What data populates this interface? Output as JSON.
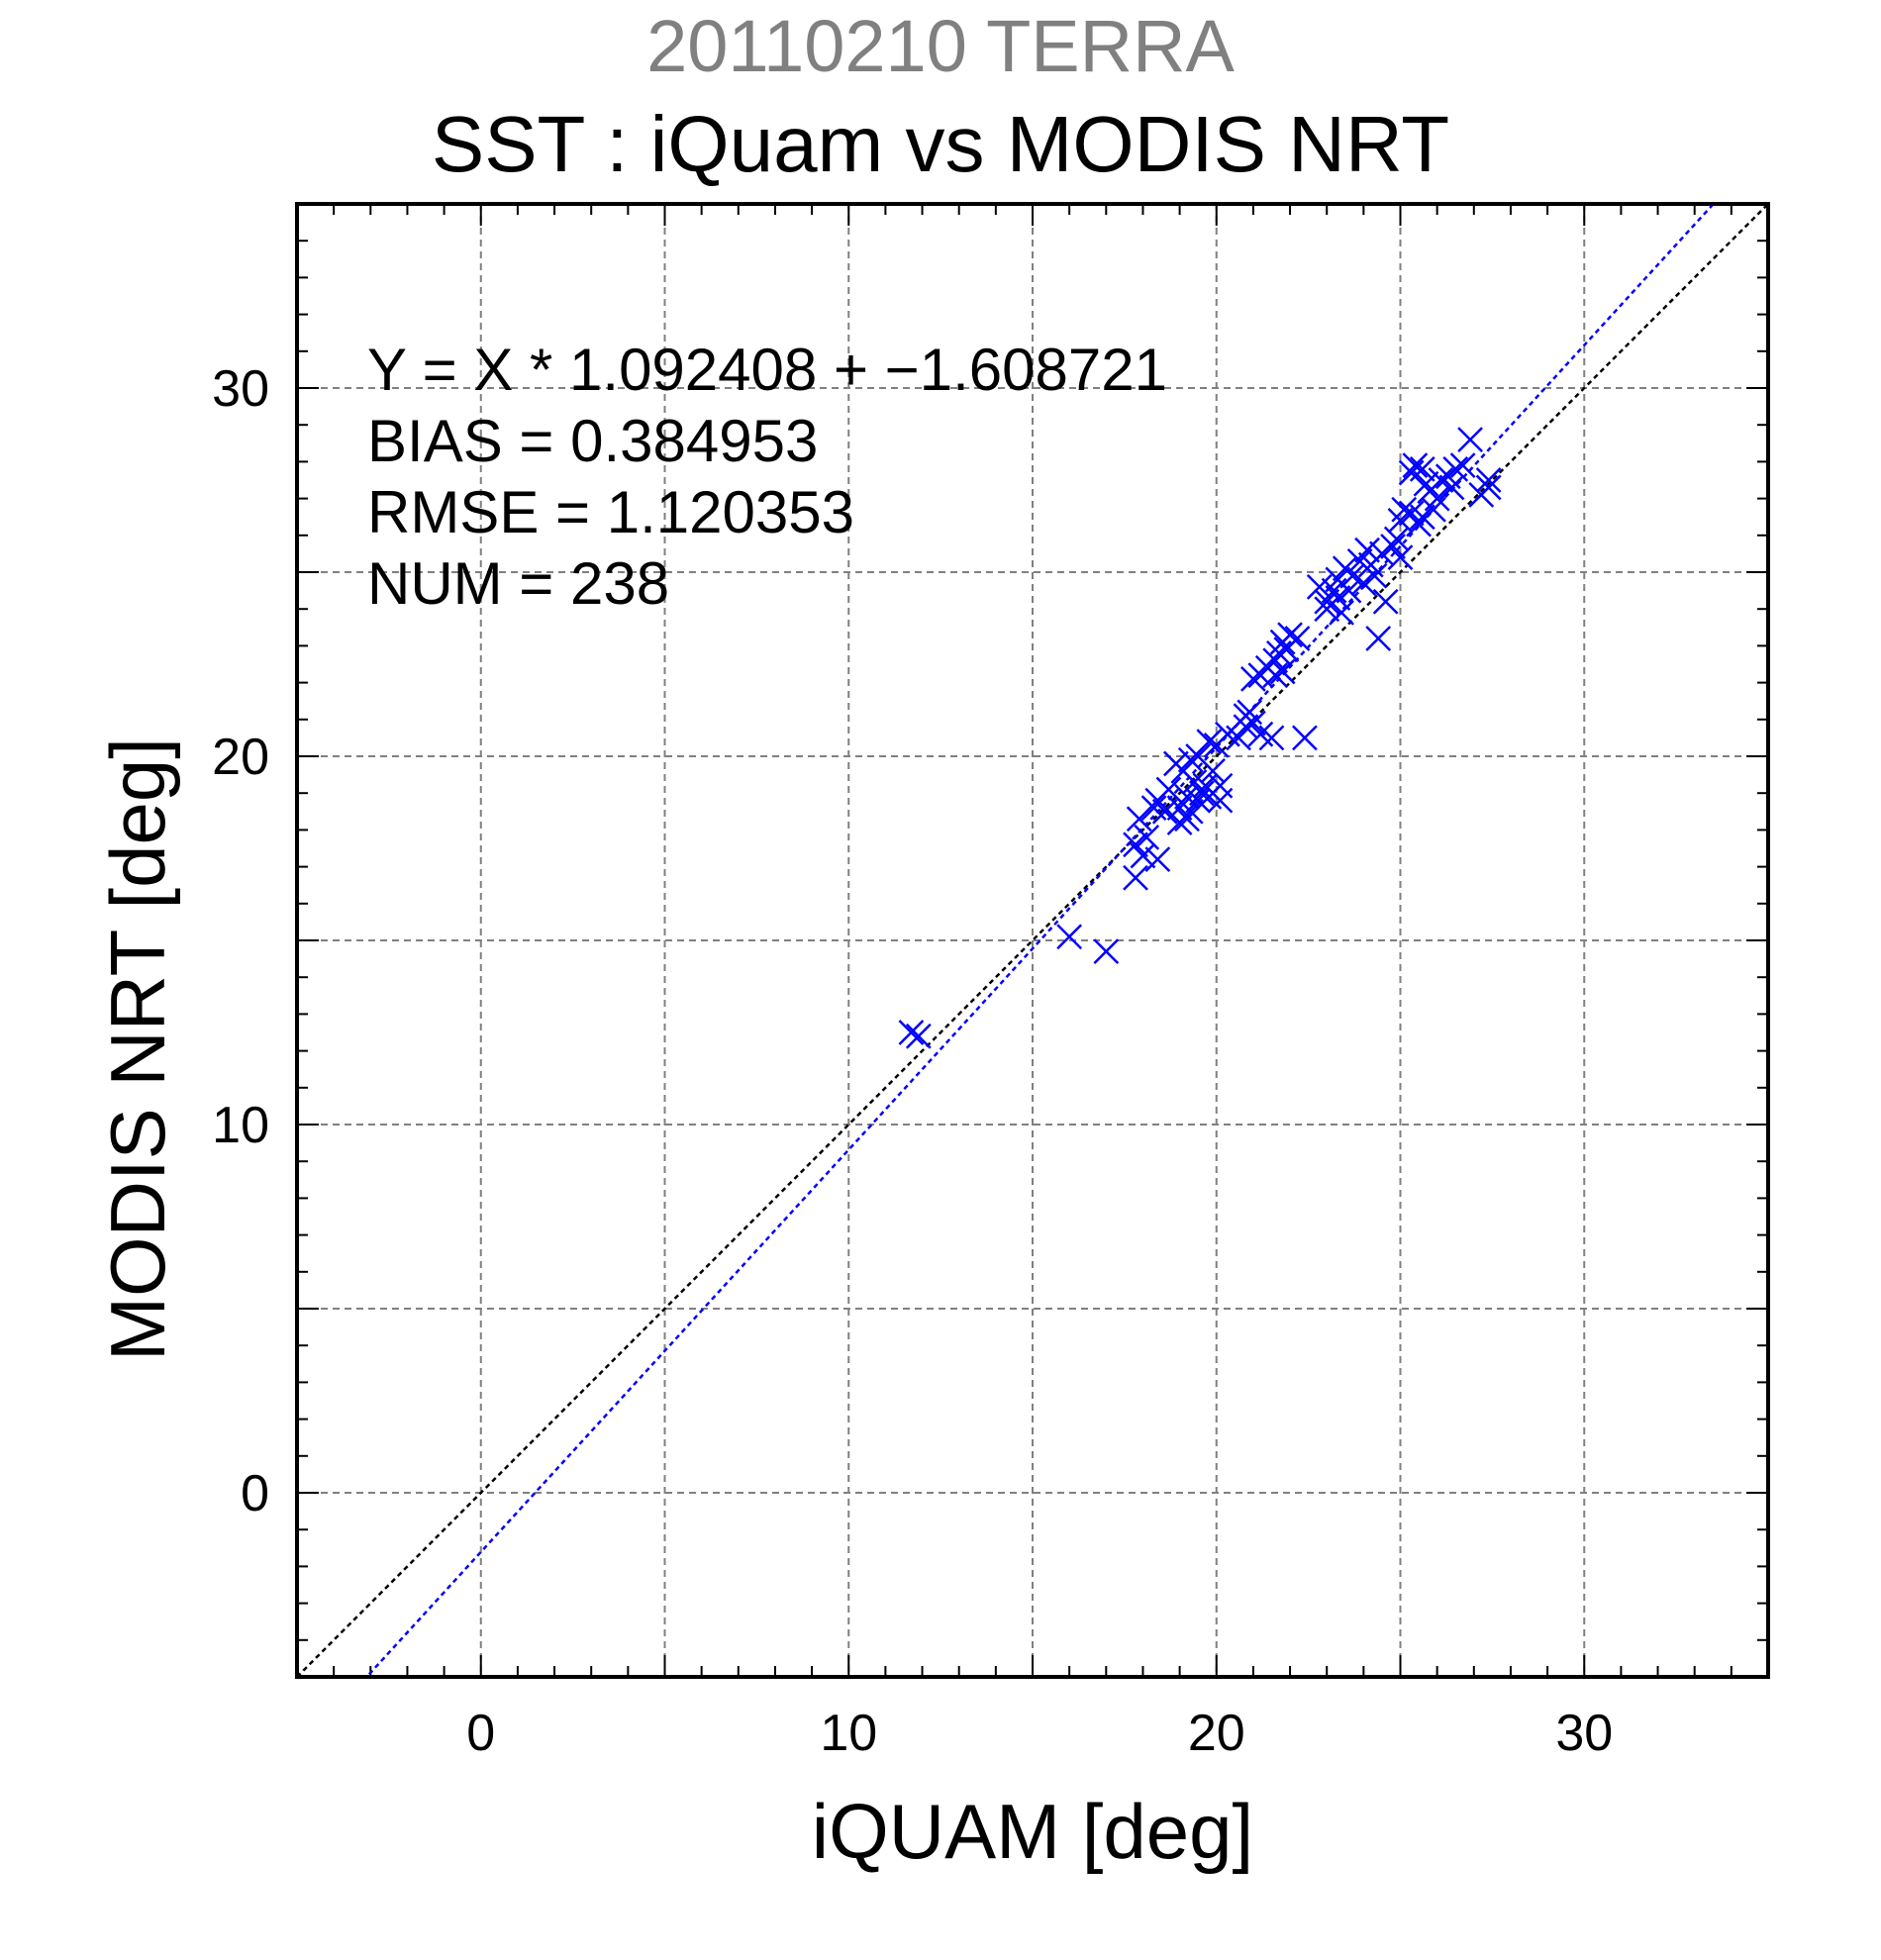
{
  "chart_data": {
    "type": "scatter",
    "title": "20110210 TERRA",
    "subtitle": "SST : iQuam vs MODIS NRT",
    "xlabel": "iQUAM [deg]",
    "ylabel": "MODIS NRT [deg]",
    "xlim": [
      -5,
      35
    ],
    "ylim": [
      -5,
      35
    ],
    "xticks": [
      "0",
      "10",
      "20",
      "30"
    ],
    "yticks": [
      "0",
      "10",
      "20",
      "30"
    ],
    "grid": true,
    "annotations": [
      "Y = X * 1.092408 + −1.608721",
      "BIAS = 0.384953",
      "RMSE = 1.120353",
      "NUM = 238"
    ],
    "fit_line": {
      "slope": 1.092408,
      "intercept": -1.608721,
      "color": "#0000ff"
    },
    "identity_line": {
      "slope": 1,
      "intercept": 0,
      "color": "#000000"
    },
    "marker_color": "#0000ff",
    "x": [
      11.7,
      11.9,
      16.0,
      17.0,
      17.8,
      17.8,
      17.9,
      18.0,
      18.1,
      18.3,
      18.4,
      18.4,
      18.6,
      18.7,
      18.9,
      19.0,
      19.0,
      19.1,
      19.2,
      19.2,
      19.3,
      19.3,
      19.4,
      19.5,
      19.5,
      19.6,
      19.7,
      19.8,
      19.8,
      19.9,
      20.0,
      20.1,
      20.1,
      20.3,
      20.6,
      20.8,
      20.8,
      20.9,
      21.0,
      21.0,
      21.2,
      21.2,
      21.4,
      21.5,
      21.6,
      21.6,
      21.7,
      21.8,
      21.8,
      21.9,
      22.0,
      22.2,
      22.4,
      22.8,
      23.0,
      23.0,
      23.2,
      23.3,
      23.3,
      23.4,
      23.5,
      23.6,
      23.7,
      23.9,
      24.0,
      24.1,
      24.2,
      24.3,
      24.4,
      24.5,
      24.6,
      24.8,
      24.9,
      25.0,
      25.0,
      25.1,
      25.3,
      25.3,
      25.4,
      25.5,
      25.6,
      25.6,
      25.7,
      25.8,
      25.9,
      26.0,
      26.1,
      26.3,
      26.4,
      26.5,
      26.7,
      26.9,
      27.2,
      27.4,
      27.4
    ],
    "y": [
      12.5,
      12.4,
      15.1,
      14.7,
      16.7,
      17.6,
      18.3,
      17.3,
      17.8,
      18.6,
      17.2,
      18.8,
      18.5,
      19.1,
      19.8,
      18.6,
      18.2,
      19.6,
      18.9,
      18.3,
      19.9,
      18.5,
      19.3,
      18.8,
      20.0,
      19.0,
      19.2,
      20.4,
      18.9,
      19.6,
      20.3,
      19.2,
      18.8,
      20.6,
      20.5,
      20.8,
      21.1,
      21.2,
      20.9,
      22.1,
      22.2,
      20.6,
      22.4,
      20.5,
      22.6,
      22.2,
      22.8,
      22.3,
      23.1,
      22.9,
      23.3,
      23.2,
      20.5,
      24.6,
      24.2,
      24.0,
      24.5,
      24.3,
      24.8,
      23.9,
      25.1,
      24.5,
      24.9,
      25.3,
      24.7,
      25.6,
      25.2,
      24.9,
      23.2,
      25.5,
      24.2,
      25.7,
      25.9,
      25.4,
      26.4,
      26.7,
      27.7,
      26.6,
      27.9,
      26.3,
      26.5,
      27.8,
      27.4,
      27.2,
      26.7,
      27.0,
      27.5,
      27.6,
      27.3,
      27.8,
      27.9,
      28.6,
      27.1,
      27.5,
      27.3
    ]
  }
}
